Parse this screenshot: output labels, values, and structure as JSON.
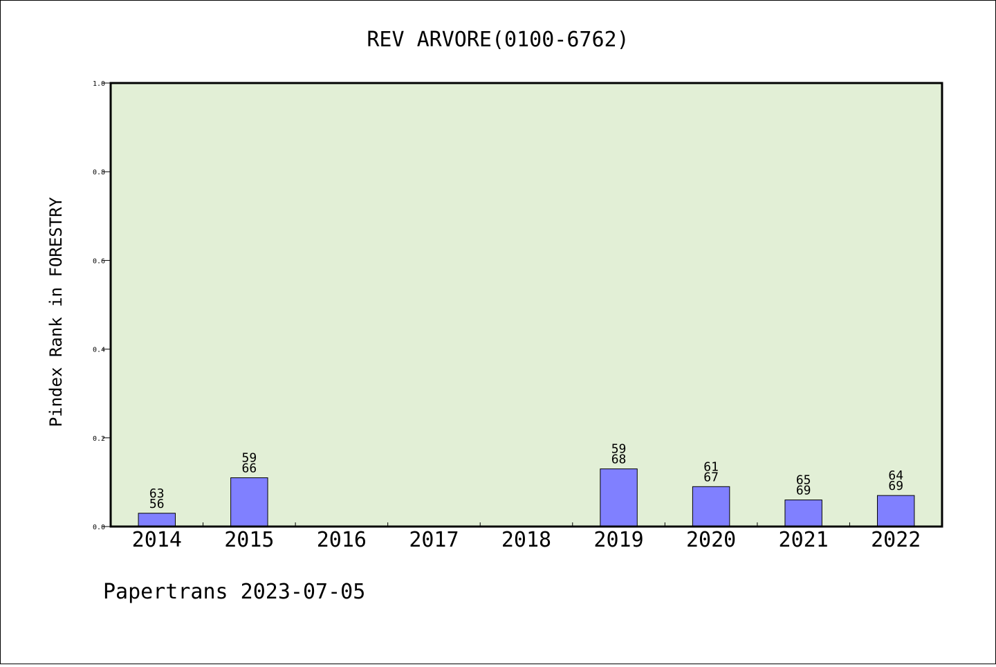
{
  "chart_data": {
    "type": "bar",
    "title": "REV ARVORE(0100-6762)",
    "xlabel": "",
    "ylabel": "Pindex Rank in FORESTRY",
    "categories": [
      "2014",
      "2015",
      "2016",
      "2017",
      "2018",
      "2019",
      "2020",
      "2021",
      "2022"
    ],
    "values": [
      0.03,
      0.11,
      0,
      0,
      0,
      0.13,
      0.09,
      0.06,
      0.07
    ],
    "bar_labels": [
      [
        "63",
        "56"
      ],
      [
        "59",
        "66"
      ],
      [
        "",
        ""
      ],
      [
        "",
        ""
      ],
      [
        "",
        ""
      ],
      [
        "59",
        "68"
      ],
      [
        "61",
        "67"
      ],
      [
        "65",
        "69"
      ],
      [
        "64",
        "69"
      ]
    ],
    "ylim": [
      0,
      1.0
    ],
    "yticks": [
      "0.0",
      "0.2",
      "0.4",
      "0.6",
      "0.8",
      "1.0"
    ],
    "grid": false,
    "plot_background": "#e2efd6",
    "bar_color": "#8080ff"
  },
  "footer": "Papertrans 2023-07-05"
}
